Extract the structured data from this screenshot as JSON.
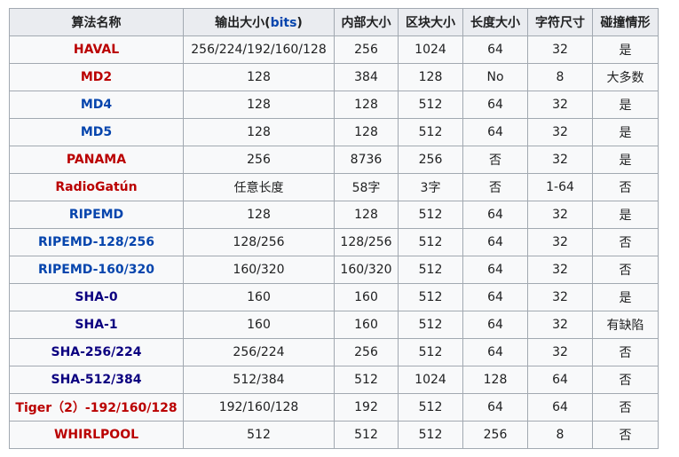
{
  "headers": {
    "name": "算法名称",
    "output_prefix": "输出大小(",
    "output_link": "bits",
    "output_suffix": ")",
    "internal": "内部大小",
    "block": "区块大小",
    "length": "长度大小",
    "char": "字符尺寸",
    "collision": "碰撞情形"
  },
  "link_colors": {
    "red": "#ba0000",
    "blue": "#0645ad",
    "navy": "#0b0080"
  },
  "rows": [
    {
      "name": "HAVAL",
      "color": "red",
      "output": "256/224/192/160/128",
      "internal": "256",
      "block": "1024",
      "length": "64",
      "char": "32",
      "collision": "是"
    },
    {
      "name": "MD2",
      "color": "red",
      "output": "128",
      "internal": "384",
      "block": "128",
      "length": "No",
      "char": "8",
      "collision": "大多数"
    },
    {
      "name": "MD4",
      "color": "blue",
      "output": "128",
      "internal": "128",
      "block": "512",
      "length": "64",
      "char": "32",
      "collision": "是"
    },
    {
      "name": "MD5",
      "color": "blue",
      "output": "128",
      "internal": "128",
      "block": "512",
      "length": "64",
      "char": "32",
      "collision": "是"
    },
    {
      "name": "PANAMA",
      "color": "red",
      "output": "256",
      "internal": "8736",
      "block": "256",
      "length": "否",
      "char": "32",
      "collision": "是"
    },
    {
      "name": "RadioGatún",
      "color": "red",
      "output": "任意长度",
      "internal": "58字",
      "block": "3字",
      "length": "否",
      "char": "1-64",
      "collision": "否"
    },
    {
      "name": "RIPEMD",
      "color": "blue",
      "output": "128",
      "internal": "128",
      "block": "512",
      "length": "64",
      "char": "32",
      "collision": "是"
    },
    {
      "name": "RIPEMD-128/256",
      "color": "blue",
      "output": "128/256",
      "internal": "128/256",
      "block": "512",
      "length": "64",
      "char": "32",
      "collision": "否"
    },
    {
      "name": "RIPEMD-160/320",
      "color": "blue",
      "output": "160/320",
      "internal": "160/320",
      "block": "512",
      "length": "64",
      "char": "32",
      "collision": "否"
    },
    {
      "name": "SHA-0",
      "color": "navy",
      "output": "160",
      "internal": "160",
      "block": "512",
      "length": "64",
      "char": "32",
      "collision": "是"
    },
    {
      "name": "SHA-1",
      "color": "navy",
      "output": "160",
      "internal": "160",
      "block": "512",
      "length": "64",
      "char": "32",
      "collision": "有缺陷"
    },
    {
      "name": "SHA-256/224",
      "color": "navy",
      "output": "256/224",
      "internal": "256",
      "block": "512",
      "length": "64",
      "char": "32",
      "collision": "否"
    },
    {
      "name": "SHA-512/384",
      "color": "navy",
      "output": "512/384",
      "internal": "512",
      "block": "1024",
      "length": "128",
      "char": "64",
      "collision": "否"
    },
    {
      "name": "Tiger（2）-192/160/128",
      "color": "red",
      "output": "192/160/128",
      "internal": "192",
      "block": "512",
      "length": "64",
      "char": "64",
      "collision": "否"
    },
    {
      "name": "WHIRLPOOL",
      "color": "red",
      "output": "512",
      "internal": "512",
      "block": "512",
      "length": "256",
      "char": "8",
      "collision": "否"
    }
  ]
}
